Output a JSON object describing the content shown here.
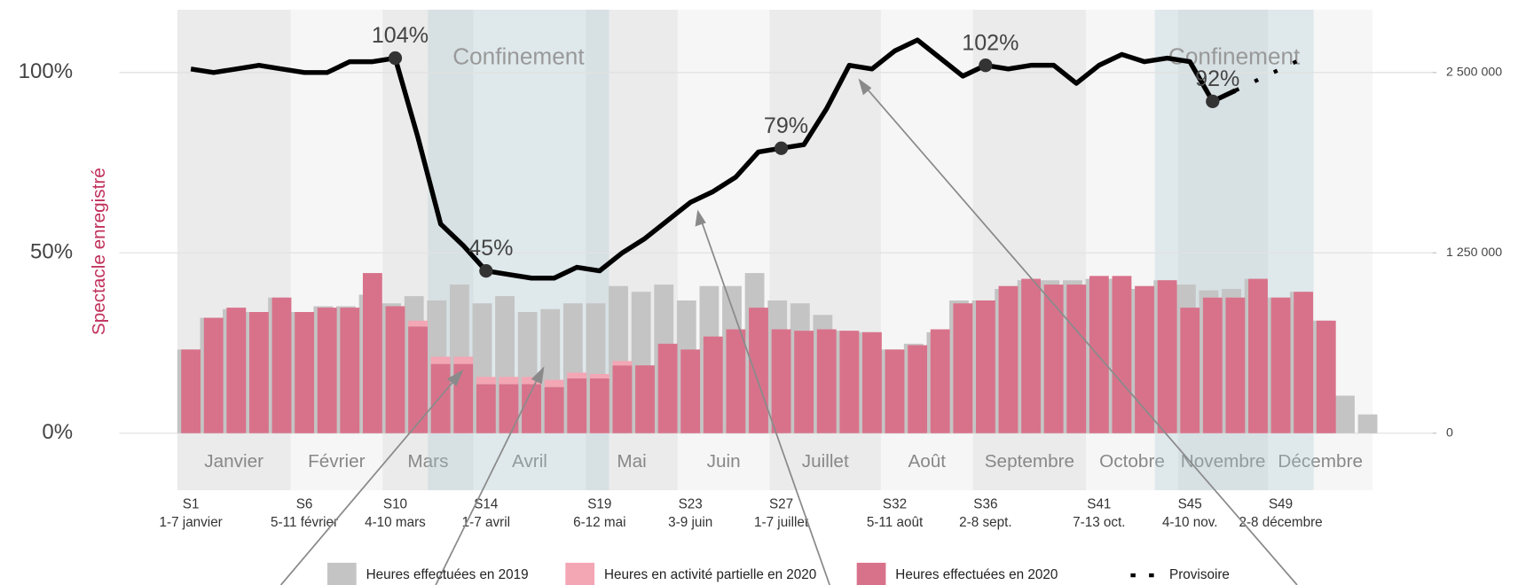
{
  "chart_data": {
    "type": "bar_line",
    "y_label": "Spectacle enregistré",
    "categories": [
      "S1",
      null,
      null,
      null,
      null,
      "S6",
      null,
      null,
      null,
      "S10",
      null,
      null,
      null,
      "S14",
      null,
      null,
      null,
      null,
      "S19",
      null,
      null,
      null,
      "S23",
      null,
      null,
      null,
      "S27",
      null,
      null,
      null,
      null,
      "S32",
      null,
      null,
      null,
      "S36",
      null,
      null,
      null,
      null,
      "S41",
      null,
      null,
      null,
      "S45",
      null,
      null,
      null,
      "S49",
      null,
      null,
      null,
      null
    ],
    "category_dates": [
      "1-7 janvier",
      null,
      null,
      null,
      null,
      "5-11 février",
      null,
      null,
      null,
      "4-10 mars",
      null,
      null,
      null,
      "1-7 avril",
      null,
      null,
      null,
      null,
      "6-12 mai",
      null,
      null,
      null,
      "3-9 juin",
      null,
      null,
      null,
      "1-7 juillet",
      null,
      null,
      null,
      null,
      "5-11 août",
      null,
      null,
      null,
      "2-8 sept.",
      null,
      null,
      null,
      null,
      "7-13 oct.",
      null,
      null,
      null,
      "4-10 nov.",
      null,
      null,
      null,
      "2-8 décembre",
      null,
      null,
      null,
      null
    ],
    "months": [
      "Janvier",
      "Février",
      "Mars",
      "Avril",
      "Mai",
      "Juin",
      "Juillet",
      "Août",
      "Septembre",
      "Octobre",
      "Novembre",
      "Décembre"
    ],
    "annotations": [
      "Confinement",
      "Confinement"
    ],
    "ylim": [
      0,
      120
    ],
    "yticks": [
      {
        "value": 0,
        "label": "0%"
      },
      {
        "value": 50,
        "label": "50%"
      },
      {
        "value": 100,
        "label": "100%"
      }
    ],
    "y2lim": [
      0,
      3000000
    ],
    "y2ticks": [
      0,
      {
        "value": 1250000,
        "label": "1 250 000"
      },
      {
        "value": 2500000,
        "label": "2 500 000"
      }
    ],
    "grid": true,
    "series": [
      {
        "name": "Heures effectuées en 2019",
        "type": "bar",
        "axis": "y2",
        "color": "#c4c4c4",
        "values": [
          580000,
          800000,
          860000,
          840000,
          940000,
          840000,
          880000,
          880000,
          960000,
          900000,
          950000,
          920000,
          1030000,
          900000,
          950000,
          840000,
          860000,
          900000,
          900000,
          1020000,
          980000,
          1030000,
          920000,
          1020000,
          1020000,
          1110000,
          920000,
          900000,
          820000,
          710000,
          700000,
          580000,
          620000,
          700000,
          920000,
          920000,
          1000000,
          1060000,
          1060000,
          1060000,
          1070000,
          1070000,
          1000000,
          1060000,
          1030000,
          990000,
          1000000,
          1070000,
          940000,
          980000,
          780000,
          260000,
          130000
        ]
      },
      {
        "name": "Heures en activité partielle en 2020",
        "type": "bar",
        "axis": "y2",
        "color": "#f3a6b4",
        "values": [
          0,
          0,
          0,
          0,
          0,
          0,
          0,
          0,
          0,
          0,
          40000,
          50000,
          50000,
          50000,
          50000,
          50000,
          50000,
          40000,
          30000,
          30000,
          0,
          0,
          0,
          0,
          0,
          0,
          0,
          0,
          0,
          0,
          0,
          0,
          0,
          0,
          0,
          0,
          0,
          0,
          0,
          0,
          0,
          0,
          0,
          0,
          0,
          0,
          0,
          0,
          0,
          0,
          0,
          null,
          null
        ]
      },
      {
        "name": "Heures effectuées en 2020",
        "type": "bar",
        "axis": "y2",
        "color": "#d8728a",
        "values": [
          580000,
          800000,
          870000,
          840000,
          940000,
          840000,
          870000,
          870000,
          1110000,
          880000,
          740000,
          480000,
          480000,
          340000,
          340000,
          340000,
          320000,
          380000,
          380000,
          470000,
          470000,
          620000,
          580000,
          670000,
          720000,
          870000,
          720000,
          710000,
          720000,
          710000,
          700000,
          580000,
          610000,
          720000,
          900000,
          920000,
          1020000,
          1070000,
          1030000,
          1030000,
          1090000,
          1090000,
          1020000,
          1060000,
          870000,
          940000,
          940000,
          1070000,
          940000,
          980000,
          780000,
          null,
          null
        ]
      },
      {
        "type": "line",
        "color": "#000000",
        "values": [
          101,
          100,
          101,
          102,
          101,
          100,
          100,
          103,
          103,
          104,
          82,
          58,
          52,
          45,
          44,
          43,
          43,
          46,
          45,
          50,
          54,
          59,
          64,
          67,
          71,
          78,
          79,
          80,
          90,
          102,
          101,
          106,
          109,
          104,
          99,
          102,
          101,
          102,
          102,
          97,
          102,
          105,
          103,
          104,
          103,
          92,
          95,
          null,
          null,
          null,
          null,
          null,
          null
        ],
        "value_labels": [
          null,
          null,
          null,
          null,
          null,
          null,
          null,
          null,
          null,
          "104%",
          null,
          null,
          null,
          "45%",
          null,
          null,
          null,
          null,
          null,
          null,
          null,
          null,
          null,
          null,
          null,
          null,
          "79%",
          null,
          null,
          null,
          null,
          null,
          null,
          null,
          null,
          "102%",
          null,
          null,
          null,
          null,
          null,
          null,
          null,
          null,
          null,
          "92%",
          null,
          null,
          null,
          null,
          null,
          null,
          null
        ]
      },
      {
        "name": "Provisoire",
        "type": "line",
        "dashed": true,
        "color": "#000000",
        "values": [
          null,
          null,
          null,
          null,
          null,
          null,
          null,
          null,
          null,
          null,
          null,
          null,
          null,
          null,
          null,
          null,
          null,
          null,
          null,
          null,
          null,
          null,
          null,
          null,
          null,
          null,
          null,
          null,
          null,
          null,
          null,
          null,
          null,
          null,
          null,
          null,
          null,
          null,
          null,
          null,
          null,
          null,
          null,
          null,
          null,
          null,
          95,
          98,
          101,
          104,
          null,
          null,
          null
        ]
      }
    ]
  }
}
